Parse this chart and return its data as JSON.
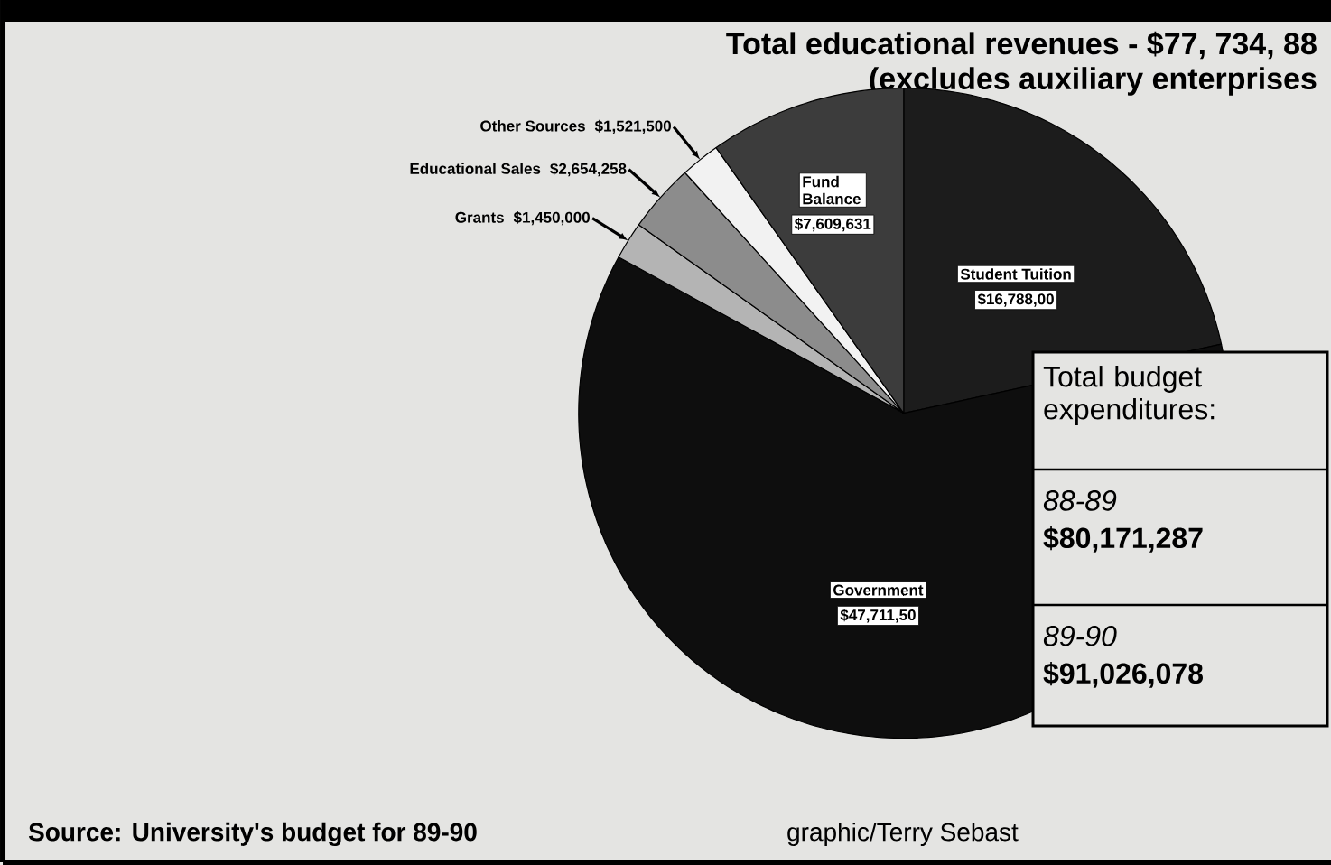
{
  "chart_data": {
    "type": "pie",
    "title": "Total educational revenues - $77, 734, 88",
    "subtitle": "(excludes auxiliary enterprises",
    "categories": [
      "Student Tuition",
      "Government",
      "Grants",
      "Educational Sales",
      "Other Sources",
      "Fund Balance"
    ],
    "values": [
      16788000,
      47711500,
      1450000,
      2654258,
      1521500,
      7609631
    ],
    "colors": [
      "#1c1c1c",
      "#0e0e0e",
      "#b4b4b4",
      "#8c8c8c",
      "#f2f2f2",
      "#3c3c3c"
    ],
    "value_labels": [
      "$16,788,00",
      "$47,711,50",
      "$1,450,000",
      "$2,654,258",
      "$1,521,500",
      "$7,609,631"
    ],
    "annotations": [
      "Total budget expenditures:",
      "88-89",
      "$80,171,287",
      "89-90",
      "$91,026,078",
      "Source: University's budget for 89-90",
      "graphic/Terry Sebast"
    ]
  }
}
